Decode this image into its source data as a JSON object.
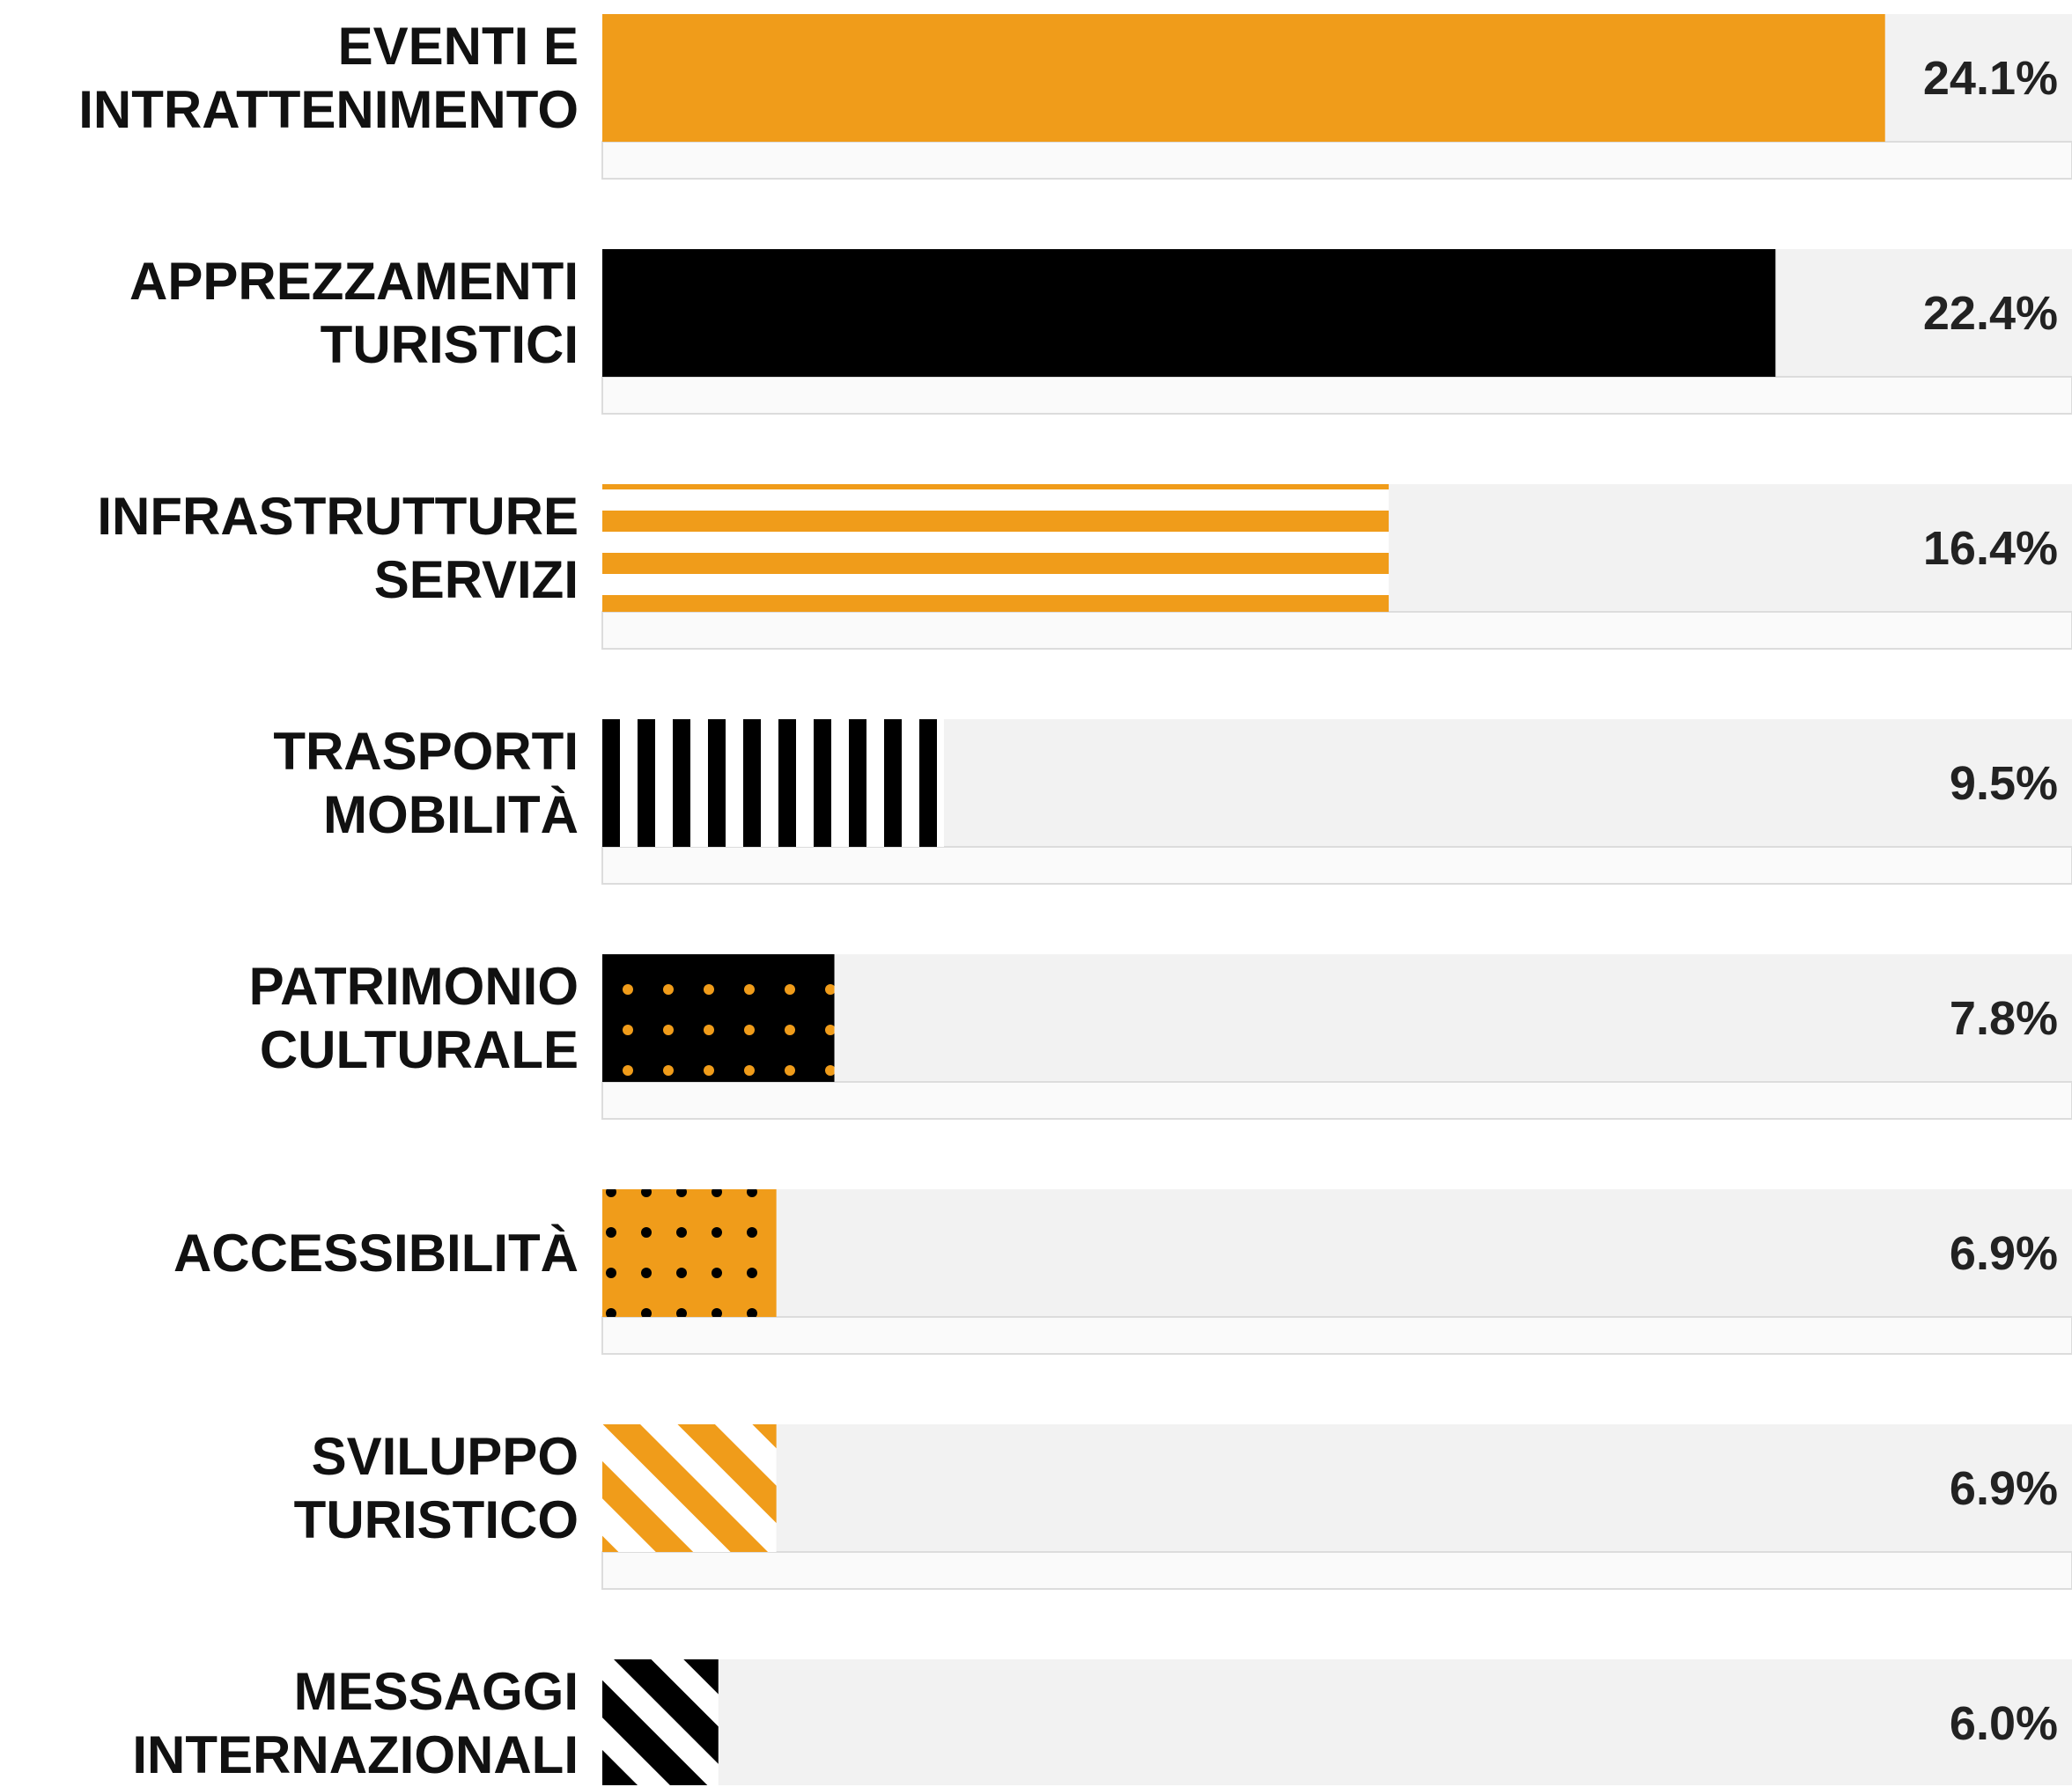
{
  "chart_data": {
    "type": "bar",
    "orientation": "horizontal",
    "categories": [
      "EVENTI E\nINTRATTENIMENTO",
      "APPREZZAMENTI\nTURISTICI",
      "INFRASTRUTTURE\nSERVIZI",
      "TRASPORTI\nMOBILITÀ",
      "PATRIMONIO\nCULTURALE",
      "ACCESSIBILITÀ",
      "SVILUPPO\nTURISTICO",
      "MESSAGGI\nINTERNAZIONALI"
    ],
    "values": [
      24.1,
      22.4,
      16.4,
      9.5,
      7.8,
      6.9,
      6.9,
      6.0
    ],
    "value_labels": [
      "24.1%",
      "22.4%",
      "16.4%",
      "9.5%",
      "7.8%",
      "6.9%",
      "6.9%",
      "6.0%"
    ],
    "colors": [
      "#f09c1a",
      "#000000"
    ],
    "xlim": [
      4.2,
      27
    ]
  }
}
